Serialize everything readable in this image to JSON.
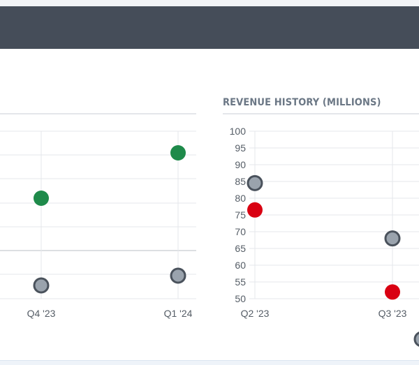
{
  "colors": {
    "header": "#454d59",
    "green": "#1e8a4a",
    "red": "#d90012",
    "gray_dot": "#9aa3ad",
    "dot_ring": "#4a525c"
  },
  "right_panel": {
    "title": "REVENUE HISTORY (MILLIONS)"
  },
  "chart_data": [
    {
      "type": "scatter",
      "title": "",
      "categories": [
        "Q4 '23",
        "Q1 '24"
      ],
      "series": [
        {
          "color": "#1e8a4a",
          "values": [
            null,
            null
          ]
        },
        {
          "color": "#9aa3ad",
          "values": [
            null,
            null
          ]
        }
      ],
      "grid": true
    },
    {
      "type": "scatter",
      "title": "REVENUE HISTORY (MILLIONS)",
      "categories": [
        "Q2 '23",
        "Q3 '23"
      ],
      "ylim": [
        50,
        100
      ],
      "yticks": [
        100,
        95,
        90,
        85,
        80,
        75,
        70,
        65,
        60,
        55,
        50
      ],
      "series": [
        {
          "color": "#9aa3ad",
          "values": [
            84.5,
            68
          ]
        },
        {
          "color": "#d90012",
          "values": [
            76.5,
            52
          ]
        }
      ],
      "grid": true
    }
  ]
}
